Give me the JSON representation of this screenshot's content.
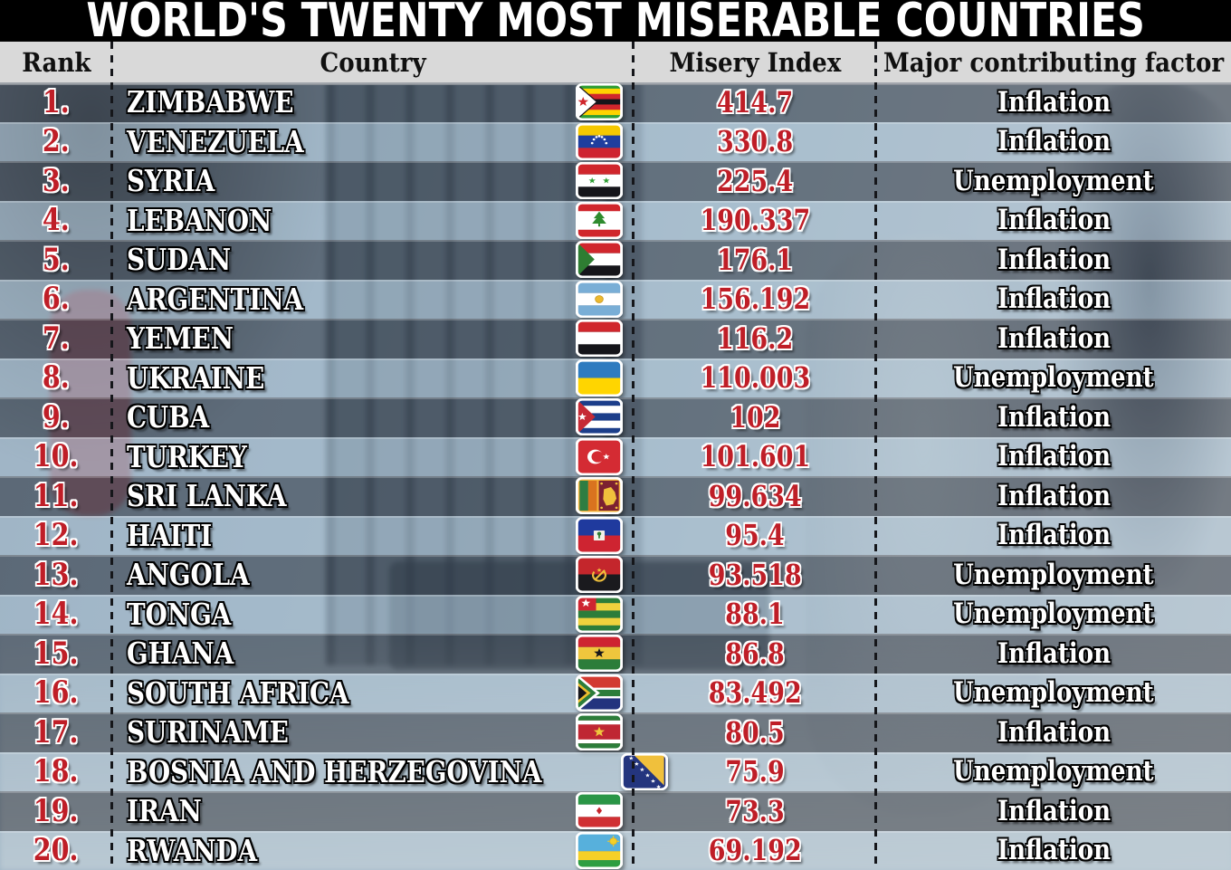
{
  "title": "WORLD'S TWENTY MOST MISERABLE COUNTRIES",
  "colors": {
    "title_bg": "#000000",
    "title_text": "#ffffff",
    "header_bg": "#d9d9d9",
    "header_text": "#101010",
    "value_red": "#bf1e27",
    "row_text_white": "#ffffff",
    "row_dark_overlay": "rgba(47,58,70,0.52)",
    "row_light_overlay": "rgba(178,203,222,0.52)"
  },
  "chart_data": {
    "type": "table",
    "title": "WORLD'S TWENTY MOST MISERABLE COUNTRIES",
    "columns": [
      "Rank",
      "Country",
      "Misery Index",
      "Major contributing factor"
    ],
    "rows": [
      {
        "rank": "1.",
        "country": "ZIMBABWE",
        "flag_icon": "zimbabwe-flag-icon",
        "misery_index": "414.7",
        "factor": "Inflation"
      },
      {
        "rank": "2.",
        "country": "VENEZUELA",
        "flag_icon": "venezuela-flag-icon",
        "misery_index": "330.8",
        "factor": "Inflation"
      },
      {
        "rank": "3.",
        "country": "SYRIA",
        "flag_icon": "syria-flag-icon",
        "misery_index": "225.4",
        "factor": "Unemployment"
      },
      {
        "rank": "4.",
        "country": "LEBANON",
        "flag_icon": "lebanon-flag-icon",
        "misery_index": "190.337",
        "factor": "Inflation"
      },
      {
        "rank": "5.",
        "country": "SUDAN",
        "flag_icon": "sudan-flag-icon",
        "misery_index": "176.1",
        "factor": "Inflation"
      },
      {
        "rank": "6.",
        "country": "ARGENTINA",
        "flag_icon": "argentina-flag-icon",
        "misery_index": "156.192",
        "factor": "Inflation"
      },
      {
        "rank": "7.",
        "country": "YEMEN",
        "flag_icon": "yemen-flag-icon",
        "misery_index": "116.2",
        "factor": "Inflation"
      },
      {
        "rank": "8.",
        "country": "UKRAINE",
        "flag_icon": "ukraine-flag-icon",
        "misery_index": "110.003",
        "factor": "Unemployment"
      },
      {
        "rank": "9.",
        "country": "CUBA",
        "flag_icon": "cuba-flag-icon",
        "misery_index": "102",
        "factor": "Inflation"
      },
      {
        "rank": "10.",
        "country": "TURKEY",
        "flag_icon": "turkey-flag-icon",
        "misery_index": "101.601",
        "factor": "Inflation"
      },
      {
        "rank": "11.",
        "country": "SRI LANKA",
        "flag_icon": "sri-lanka-flag-icon",
        "misery_index": "99.634",
        "factor": "Inflation"
      },
      {
        "rank": "12.",
        "country": "HAITI",
        "flag_icon": "haiti-flag-icon",
        "misery_index": "95.4",
        "factor": "Inflation"
      },
      {
        "rank": "13.",
        "country": "ANGOLA",
        "flag_icon": "angola-flag-icon",
        "misery_index": "93.518",
        "factor": "Unemployment"
      },
      {
        "rank": "14.",
        "country": "TONGA",
        "flag_icon": "tonga-flag-icon",
        "misery_index": "88.1",
        "factor": "Unemployment"
      },
      {
        "rank": "15.",
        "country": "GHANA",
        "flag_icon": "ghana-flag-icon",
        "misery_index": "86.8",
        "factor": "Inflation"
      },
      {
        "rank": "16.",
        "country": "SOUTH AFRICA",
        "flag_icon": "south-africa-flag-icon",
        "misery_index": "83.492",
        "factor": "Unemployment"
      },
      {
        "rank": "17.",
        "country": "SURINAME",
        "flag_icon": "suriname-flag-icon",
        "misery_index": "80.5",
        "factor": "Inflation"
      },
      {
        "rank": "18.",
        "country": "BOSNIA AND HERZEGOVINA",
        "flag_icon": "bosnia-flag-icon",
        "misery_index": "75.9",
        "factor": "Unemployment"
      },
      {
        "rank": "19.",
        "country": "IRAN",
        "flag_icon": "iran-flag-icon",
        "misery_index": "73.3",
        "factor": "Inflation"
      },
      {
        "rank": "20.",
        "country": "RWANDA",
        "flag_icon": "rwanda-flag-icon",
        "misery_index": "69.192",
        "factor": "Inflation"
      }
    ]
  }
}
